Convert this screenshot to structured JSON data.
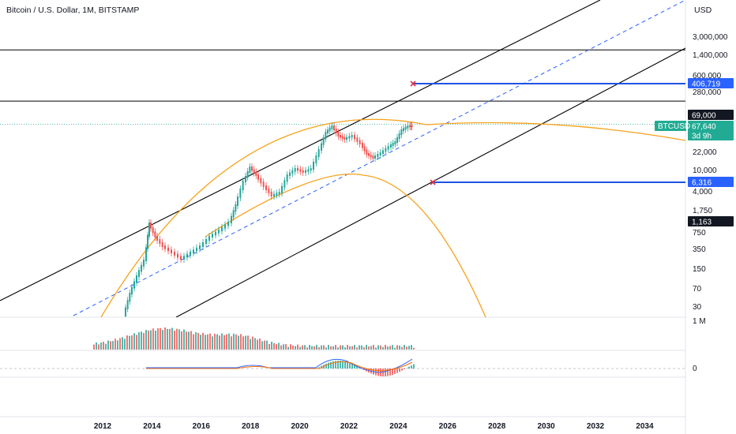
{
  "header": {
    "symbol_title": "Bitcoin / U.S. Dollar, 1M, BITSTAMP",
    "currency": "USD"
  },
  "colors": {
    "up": "#26a69a",
    "down": "#ef5350",
    "trend": "#000000",
    "dashed_trend": "#2962ff",
    "arc": "#f7a21b",
    "level_line": "#1e53e5",
    "macd": "#2962ff",
    "signal": "#ff6d00"
  },
  "chart_data": {
    "type": "candlestick",
    "y_scale": "log",
    "y_tick_labels": [
      "3,000,000",
      "1,400,000",
      "600,000",
      "280,000",
      "22,000",
      "10,000",
      "4,000",
      "1,750",
      "750",
      "350",
      "150",
      "70",
      "30"
    ],
    "x_tick_labels": [
      "2012",
      "2014",
      "2016",
      "2018",
      "2020",
      "2022",
      "2024",
      "2026",
      "2028",
      "2030",
      "2032",
      "2034"
    ],
    "price_tags": [
      {
        "label": "406,719",
        "style": "blue"
      },
      {
        "label": "69,000",
        "style": "black"
      },
      {
        "label": "67,640",
        "style": "green"
      },
      {
        "label": "3d 9h",
        "style": "green"
      },
      {
        "label": "6,316",
        "style": "blue"
      },
      {
        "label": "1,163",
        "style": "black"
      }
    ],
    "symbol_tag": "BTCUSD",
    "volume_axis_label": "1 M",
    "macd_axis_label": "0",
    "targets": [
      {
        "marker": "x",
        "price": 406719,
        "x_year": 2024.6
      },
      {
        "marker": "x",
        "price": 6316,
        "x_year": 2025.4
      }
    ],
    "horizontal_levels": [
      69000,
      1163
    ]
  }
}
